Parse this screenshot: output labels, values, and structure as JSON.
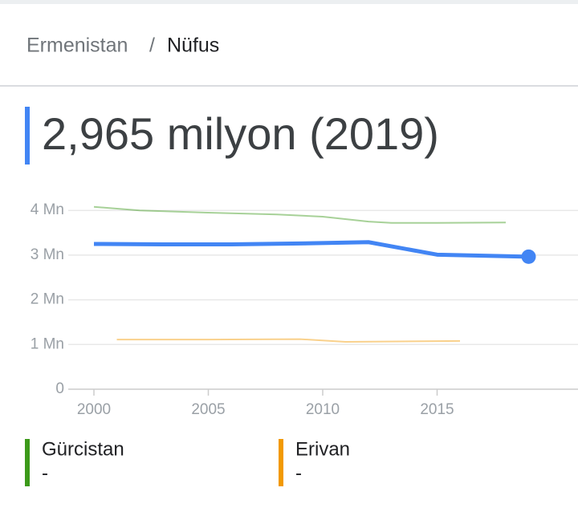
{
  "breadcrumb": {
    "parent": "Ermenistan",
    "separator": "/",
    "current": "Nüfus"
  },
  "headline": "2,965 milyon (2019)",
  "chart_data": {
    "type": "line",
    "xlim": [
      1999,
      2021
    ],
    "xticks": [
      2000,
      2005,
      2010,
      2015
    ],
    "ylim": [
      0,
      4.3
    ],
    "yticks": [
      0,
      {
        "value": 1,
        "label": "1 Mn"
      },
      {
        "value": 2,
        "label": "2 Mn"
      },
      {
        "value": 3,
        "label": "3 Mn"
      },
      {
        "value": 4,
        "label": "4 Mn"
      }
    ],
    "grid": true,
    "series": [
      {
        "name": "Gürcistan",
        "color": "#3c9a1a",
        "current_value": "-",
        "x": [
          2000,
          2002,
          2005,
          2008,
          2010,
          2012,
          2013,
          2015,
          2018
        ],
        "values": [
          4.08,
          4.0,
          3.95,
          3.91,
          3.86,
          3.75,
          3.72,
          3.72,
          3.73
        ]
      },
      {
        "name": "Erivan",
        "color": "#f29900",
        "current_value": "-",
        "x": [
          2001,
          2005,
          2009,
          2011,
          2016
        ],
        "values": [
          1.11,
          1.11,
          1.12,
          1.06,
          1.08
        ]
      },
      {
        "color": "#4285f4",
        "x": [
          2000,
          2003,
          2006,
          2009,
          2012,
          2015,
          2019
        ],
        "values": [
          3.25,
          3.24,
          3.24,
          3.26,
          3.29,
          3.01,
          2.965
        ]
      }
    ]
  }
}
